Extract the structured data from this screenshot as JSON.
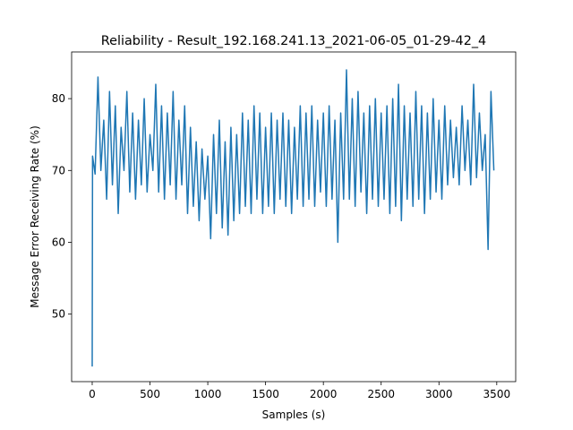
{
  "chart_data": {
    "type": "line",
    "title": "Reliability - Result_192.168.241.13_2021-06-05_01-29-42_4",
    "x_label": "Samples (s)",
    "y_label": "Message Error Receiving Rate (%)",
    "xlim": [
      -178,
      3664
    ],
    "ylim": [
      40.6,
      86.5
    ],
    "xticks": [
      0,
      500,
      1000,
      1500,
      2000,
      2500,
      3000,
      3500
    ],
    "yticks": [
      50,
      60,
      70,
      80
    ],
    "grid": false,
    "series": [
      {
        "color": "#1f77b4",
        "x": [
          0,
          3,
          25,
          50,
          75,
          100,
          125,
          150,
          175,
          200,
          225,
          250,
          275,
          300,
          325,
          350,
          375,
          400,
          425,
          450,
          475,
          500,
          525,
          550,
          575,
          600,
          625,
          650,
          675,
          700,
          725,
          750,
          775,
          800,
          825,
          850,
          875,
          900,
          925,
          950,
          975,
          1000,
          1025,
          1050,
          1075,
          1100,
          1125,
          1150,
          1175,
          1200,
          1225,
          1250,
          1275,
          1300,
          1325,
          1350,
          1375,
          1400,
          1425,
          1450,
          1475,
          1500,
          1525,
          1550,
          1575,
          1600,
          1625,
          1650,
          1675,
          1700,
          1725,
          1750,
          1775,
          1800,
          1825,
          1850,
          1875,
          1900,
          1925,
          1950,
          1975,
          2000,
          2025,
          2050,
          2075,
          2100,
          2125,
          2150,
          2175,
          2200,
          2225,
          2250,
          2275,
          2300,
          2325,
          2350,
          2375,
          2400,
          2425,
          2450,
          2475,
          2500,
          2525,
          2550,
          2575,
          2600,
          2625,
          2650,
          2675,
          2700,
          2725,
          2750,
          2775,
          2800,
          2825,
          2850,
          2875,
          2900,
          2925,
          2950,
          2975,
          3000,
          3025,
          3050,
          3075,
          3100,
          3125,
          3150,
          3175,
          3200,
          3225,
          3250,
          3275,
          3300,
          3325,
          3350,
          3375,
          3400,
          3425,
          3450,
          3475
        ],
        "values": [
          42.7,
          72,
          69.5,
          83,
          70,
          77,
          66,
          81,
          68,
          79,
          64,
          76,
          70,
          81,
          67,
          78,
          66,
          77,
          68,
          80,
          67,
          75,
          70,
          82,
          67,
          79,
          66,
          78,
          68,
          81,
          66,
          77,
          68,
          79,
          64,
          76,
          65,
          74,
          63,
          73,
          66,
          72,
          60.5,
          75,
          64,
          77,
          62,
          74,
          61,
          76,
          63,
          75,
          64,
          78,
          65,
          77,
          64,
          79,
          66,
          78,
          64,
          76,
          65,
          78,
          64,
          77,
          66,
          78,
          65,
          77,
          64,
          76,
          66,
          79,
          65,
          78,
          66,
          79,
          65,
          77,
          67,
          78,
          65,
          79,
          66,
          77,
          60,
          78,
          66,
          84,
          66,
          80,
          65,
          81,
          67,
          78,
          64,
          79,
          66,
          80,
          65,
          78,
          66,
          79,
          64,
          80,
          65,
          82,
          63,
          79,
          66,
          78,
          65,
          81,
          66,
          79,
          64,
          78,
          66,
          80,
          67,
          77,
          66,
          79,
          68,
          77,
          69,
          76,
          68,
          79,
          70,
          77,
          68,
          82,
          69,
          78,
          70,
          75,
          59,
          81,
          70
        ]
      }
    ]
  }
}
